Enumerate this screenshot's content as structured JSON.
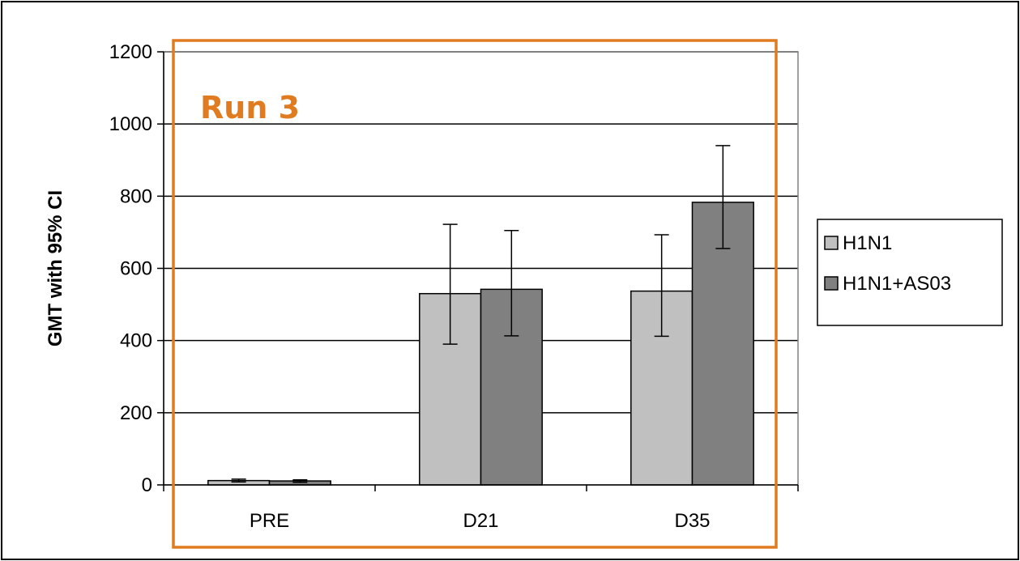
{
  "chart_data": {
    "type": "bar",
    "categories": [
      "PRE",
      "D21",
      "D35"
    ],
    "series": [
      {
        "name": "H1N1",
        "color": "#c0c0c0",
        "values": [
          12,
          530,
          537
        ],
        "ci_lower": [
          8,
          390,
          412
        ],
        "ci_upper": [
          16,
          722,
          693
        ]
      },
      {
        "name": "H1N1+AS03",
        "color": "#808080",
        "values": [
          11,
          542,
          783
        ],
        "ci_lower": [
          7,
          413,
          655
        ],
        "ci_upper": [
          14,
          705,
          940
        ]
      }
    ],
    "xlabel": "",
    "ylabel": "GMT with 95% CI",
    "ylim": [
      0,
      1200
    ],
    "yticks": [
      0,
      200,
      400,
      600,
      800,
      1000,
      1200
    ],
    "grid": true,
    "legend_position": "right",
    "annotation": {
      "text": "Run 3",
      "color": "#e07b20"
    }
  }
}
